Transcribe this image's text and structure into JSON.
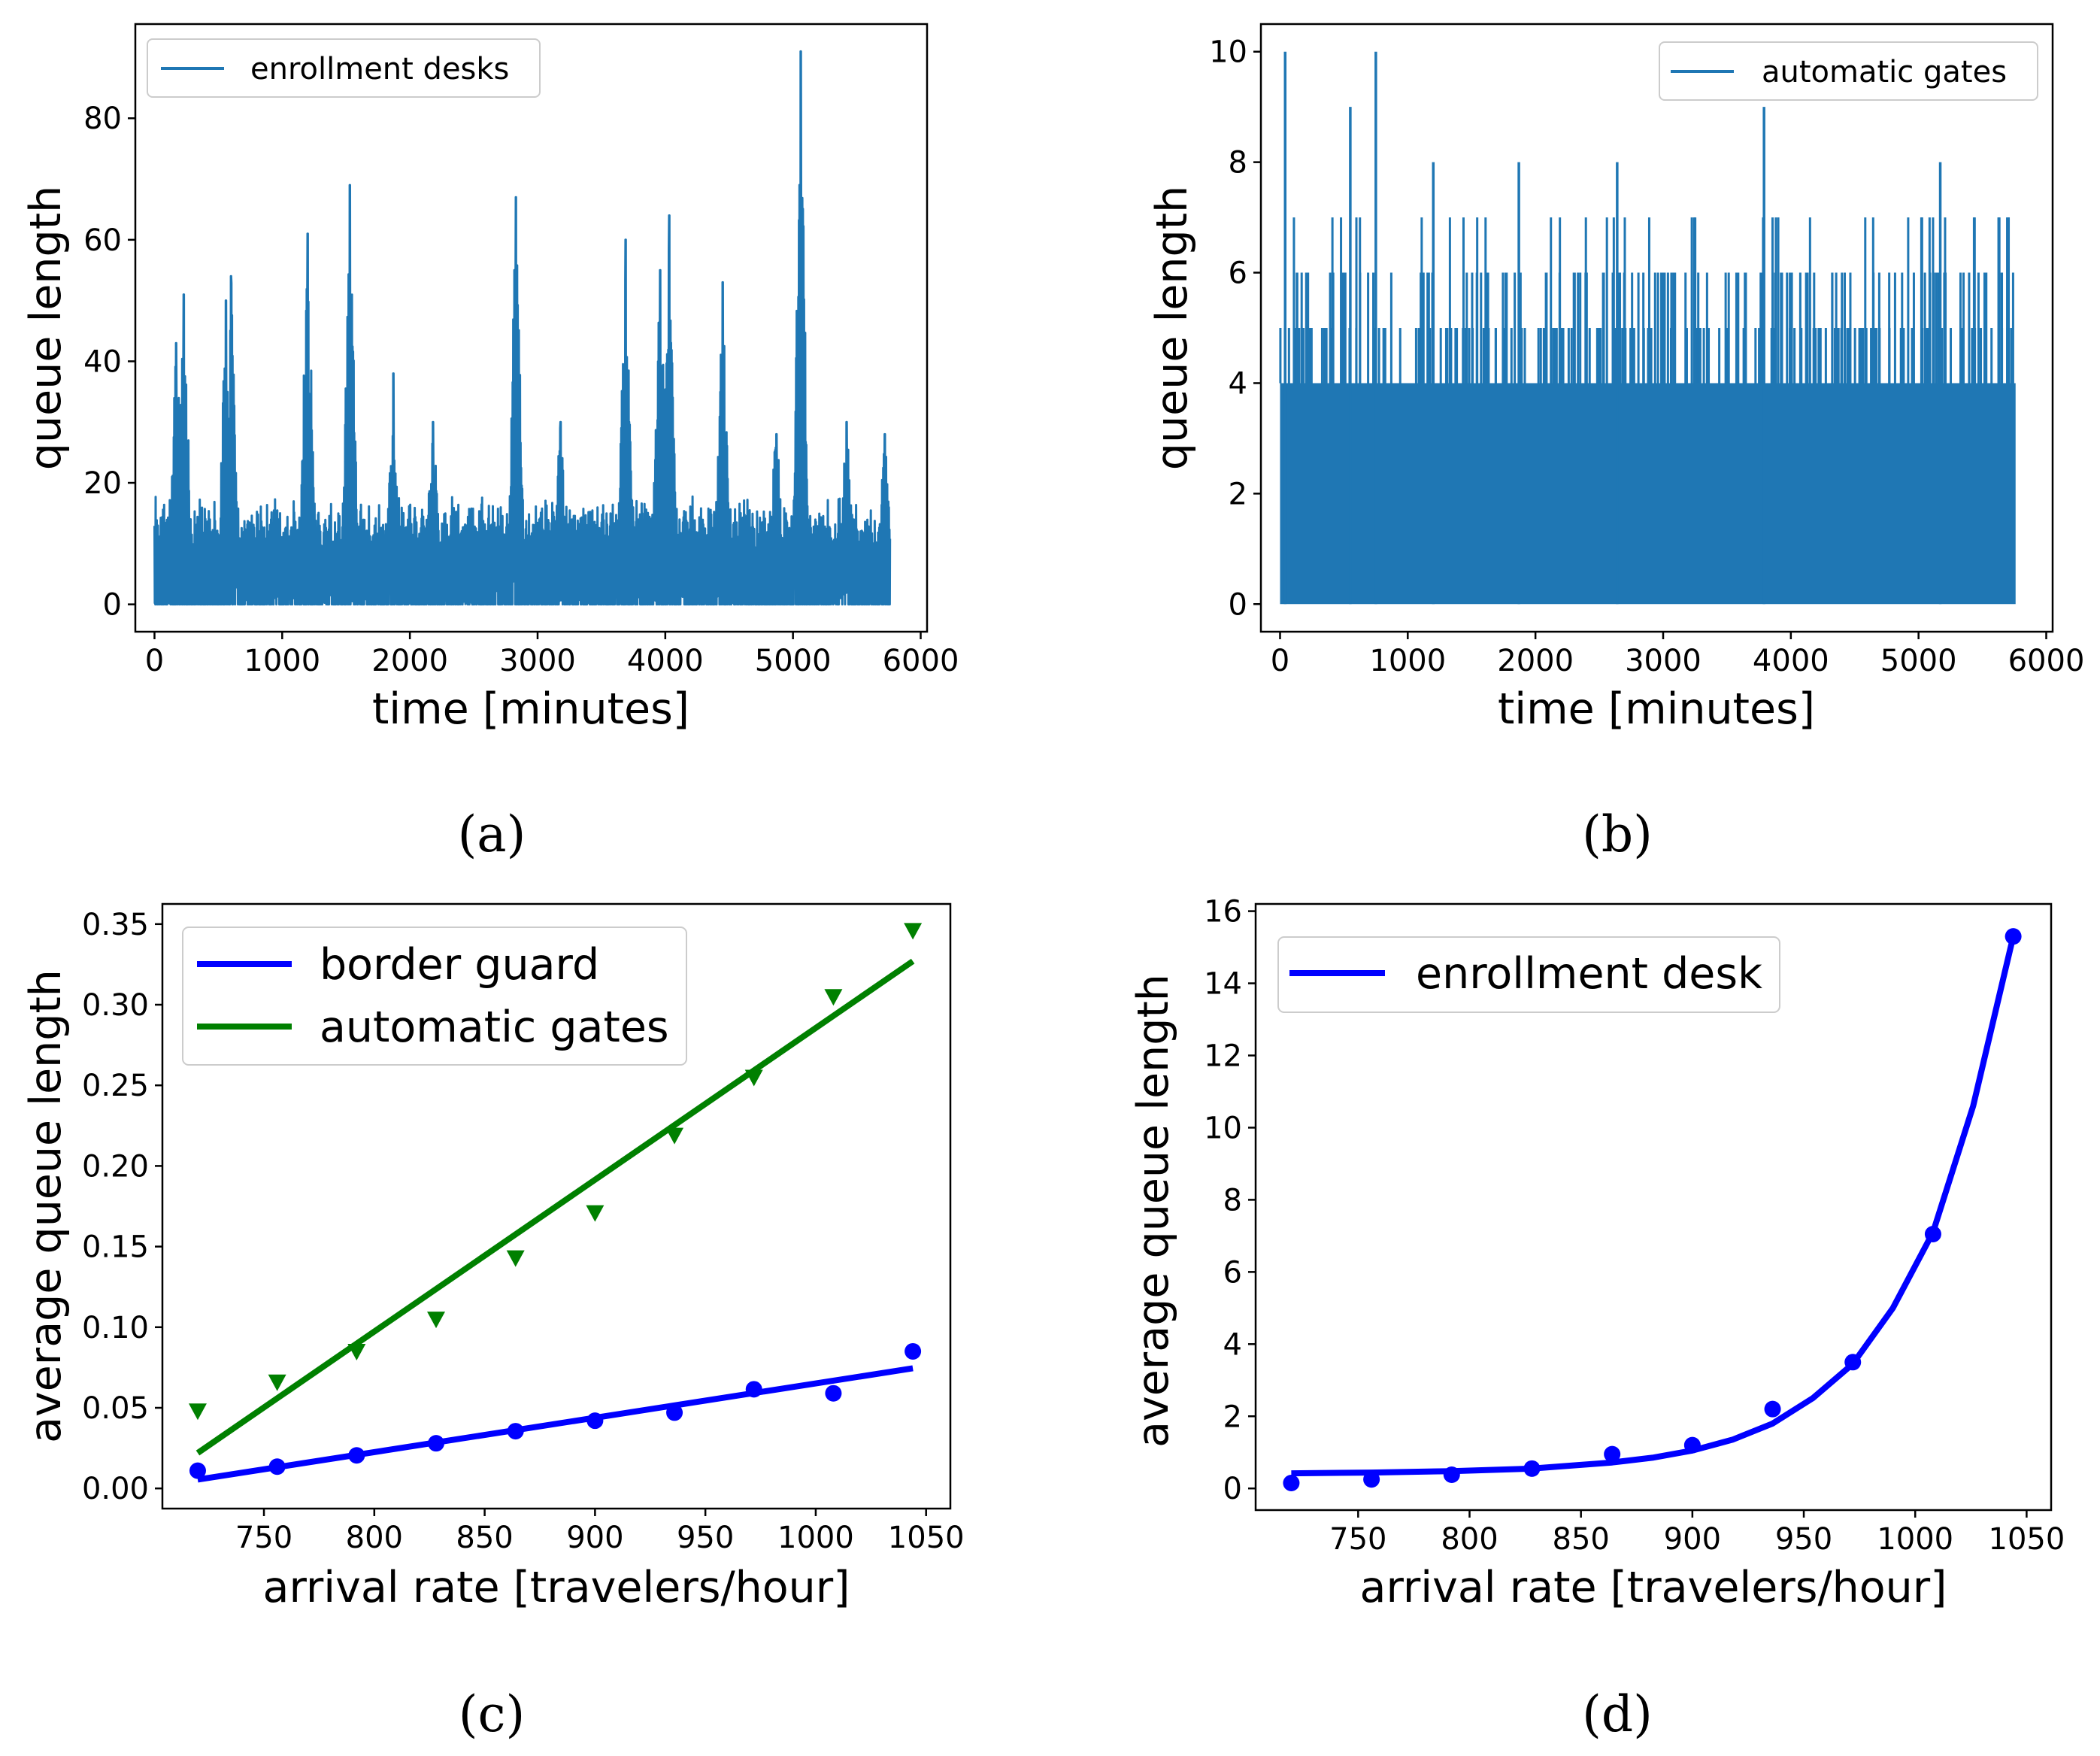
{
  "chart_data": [
    {
      "panel": "a",
      "type": "line",
      "caption": "(a)",
      "title": "",
      "xlabel": "time [minutes]",
      "ylabel": "queue length",
      "xlim": [
        -150,
        6050
      ],
      "ylim": [
        -4.5,
        95.5
      ],
      "xticks": [
        0,
        1000,
        2000,
        3000,
        4000,
        5000,
        6000
      ],
      "yticks": [
        0,
        20,
        40,
        60,
        80
      ],
      "legend": "top-left",
      "color": "#1f77b4",
      "series": [
        {
          "name": "enrollment desks",
          "x_range": [
            0,
            5760
          ],
          "peaks": [
            [
              170,
              43
            ],
            [
              230,
              51
            ],
            [
              560,
              50
            ],
            [
              600,
              54
            ],
            [
              1200,
              61
            ],
            [
              1530,
              69
            ],
            [
              1870,
              38
            ],
            [
              2180,
              30
            ],
            [
              2830,
              67
            ],
            [
              3180,
              30
            ],
            [
              3690,
              60
            ],
            [
              3960,
              55
            ],
            [
              4030,
              64
            ],
            [
              4450,
              53
            ],
            [
              4870,
              28
            ],
            [
              5060,
              91
            ],
            [
              5420,
              30
            ],
            [
              5720,
              28
            ]
          ]
        }
      ]
    },
    {
      "panel": "b",
      "type": "line",
      "caption": "(b)",
      "title": "",
      "xlabel": "time [minutes]",
      "ylabel": "queue length",
      "xlim": [
        -150,
        6050
      ],
      "ylim": [
        -0.5,
        10.5
      ],
      "xticks": [
        0,
        1000,
        2000,
        3000,
        4000,
        5000,
        6000
      ],
      "yticks": [
        0,
        2,
        4,
        6,
        8,
        10
      ],
      "legend": "top-right",
      "color": "#1f77b4",
      "series": [
        {
          "name": "automatic gates",
          "x_range": [
            0,
            5760
          ],
          "peaks": [
            [
              40,
              10
            ],
            [
              550,
              9
            ],
            [
              750,
              10
            ],
            [
              1200,
              8
            ],
            [
              1870,
              8
            ],
            [
              2640,
              8
            ],
            [
              3790,
              9
            ],
            [
              5170,
              8
            ]
          ]
        }
      ]
    },
    {
      "panel": "c",
      "type": "line",
      "caption": "(c)",
      "title": "",
      "xlabel": "arrival rate [travelers/hour]",
      "ylabel": "average queue length",
      "xlim": [
        704,
        1061
      ],
      "ylim": [
        -0.0125,
        0.3625
      ],
      "xticks": [
        750,
        800,
        850,
        900,
        950,
        1000,
        1050
      ],
      "ytick_labels": [
        "0.00",
        "0.05",
        "0.10",
        "0.15",
        "0.20",
        "0.25",
        "0.30",
        "0.35"
      ],
      "legend": "top-left",
      "x": [
        720,
        756,
        792,
        828,
        864,
        900,
        936,
        972,
        1008,
        1044
      ],
      "series": [
        {
          "name": "border guard",
          "color": "#0000ff",
          "fit_line": [
            [
              720,
              0.0055
            ],
            [
              1044,
              0.0745
            ]
          ],
          "points": [
            0.011,
            0.0135,
            0.0205,
            0.028,
            0.0355,
            0.042,
            0.047,
            0.0615,
            0.059,
            0.085
          ]
        },
        {
          "name": "automatic gates",
          "color": "#008000",
          "fit_line": [
            [
              720,
              0.022
            ],
            [
              1044,
              0.327
            ]
          ],
          "points": [
            0.048,
            0.066,
            0.085,
            0.105,
            0.143,
            0.171,
            0.219,
            0.255,
            0.305,
            0.346
          ]
        }
      ]
    },
    {
      "panel": "d",
      "type": "line",
      "caption": "(d)",
      "title": "",
      "xlabel": "arrival rate [travelers/hour]",
      "ylabel": "average queue length",
      "xlim": [
        704,
        1061
      ],
      "ylim": [
        -0.6,
        16.2
      ],
      "xticks": [
        750,
        800,
        850,
        900,
        950,
        1000,
        1050
      ],
      "yticks": [
        0,
        2,
        4,
        6,
        8,
        10,
        12,
        14,
        16
      ],
      "legend": "top-left",
      "color": "#0000ff",
      "x": [
        720,
        756,
        792,
        828,
        864,
        900,
        936,
        972,
        1008,
        1044
      ],
      "series": [
        {
          "name": "enrollment desk",
          "curve": [
            [
              720,
              0.42
            ],
            [
              756,
              0.44
            ],
            [
              792,
              0.48
            ],
            [
              828,
              0.55
            ],
            [
              864,
              0.72
            ],
            [
              882,
              0.85
            ],
            [
              900,
              1.05
            ],
            [
              918,
              1.35
            ],
            [
              936,
              1.8
            ],
            [
              954,
              2.5
            ],
            [
              972,
              3.45
            ],
            [
              990,
              5.0
            ],
            [
              1008,
              7.1
            ],
            [
              1026,
              10.6
            ],
            [
              1044,
              15.3
            ]
          ],
          "points": [
            0.15,
            0.25,
            0.38,
            0.55,
            0.95,
            1.2,
            2.2,
            3.5,
            7.05,
            15.3
          ]
        }
      ]
    }
  ]
}
